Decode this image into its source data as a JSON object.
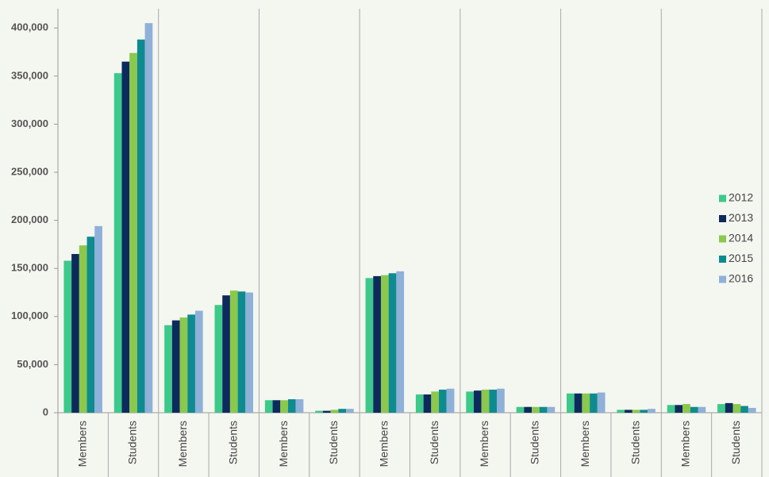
{
  "chart_data": {
    "type": "bar",
    "categories": [
      "Members",
      "Students",
      "Members",
      "Students",
      "Members",
      "Students",
      "Members",
      "Students",
      "Members",
      "Students",
      "Members",
      "Students",
      "Members",
      "Students"
    ],
    "series": [
      {
        "name": "2012",
        "color": "#3cc98a",
        "values": [
          158000,
          353000,
          91000,
          112000,
          13000,
          2000,
          140000,
          19000,
          22000,
          6000,
          20000,
          3000,
          8000,
          9000
        ]
      },
      {
        "name": "2013",
        "color": "#0d2a5e",
        "values": [
          165000,
          365000,
          96000,
          122000,
          13000,
          2000,
          142000,
          19000,
          23000,
          6000,
          20000,
          3000,
          8000,
          10000
        ]
      },
      {
        "name": "2014",
        "color": "#8cc84b",
        "values": [
          174000,
          374000,
          99000,
          127000,
          13000,
          3000,
          143000,
          22000,
          24000,
          6000,
          20000,
          3000,
          9000,
          9000
        ]
      },
      {
        "name": "2015",
        "color": "#0e8b8f",
        "values": [
          183000,
          388000,
          102000,
          126000,
          14000,
          4000,
          145000,
          24000,
          24000,
          6000,
          20000,
          3000,
          6000,
          7000
        ]
      },
      {
        "name": "2016",
        "color": "#8fb0d8",
        "values": [
          194000,
          405000,
          106000,
          125000,
          14000,
          4000,
          147000,
          25000,
          25000,
          6000,
          21000,
          4000,
          6000,
          5000
        ]
      }
    ],
    "ylim": [
      0,
      420000
    ],
    "yticks": [
      0,
      {
        "value": 50000,
        "label": "50,000"
      },
      {
        "value": 100000,
        "label": "100,000"
      },
      {
        "value": 150000,
        "label": "150,000"
      },
      {
        "value": 200000,
        "label": "200,000"
      },
      {
        "value": 250000,
        "label": "250,000"
      },
      {
        "value": 300000,
        "label": "300,000"
      },
      {
        "value": 350000,
        "label": "350,000"
      },
      {
        "value": 400000,
        "label": "400,000"
      }
    ],
    "legend": "right"
  }
}
